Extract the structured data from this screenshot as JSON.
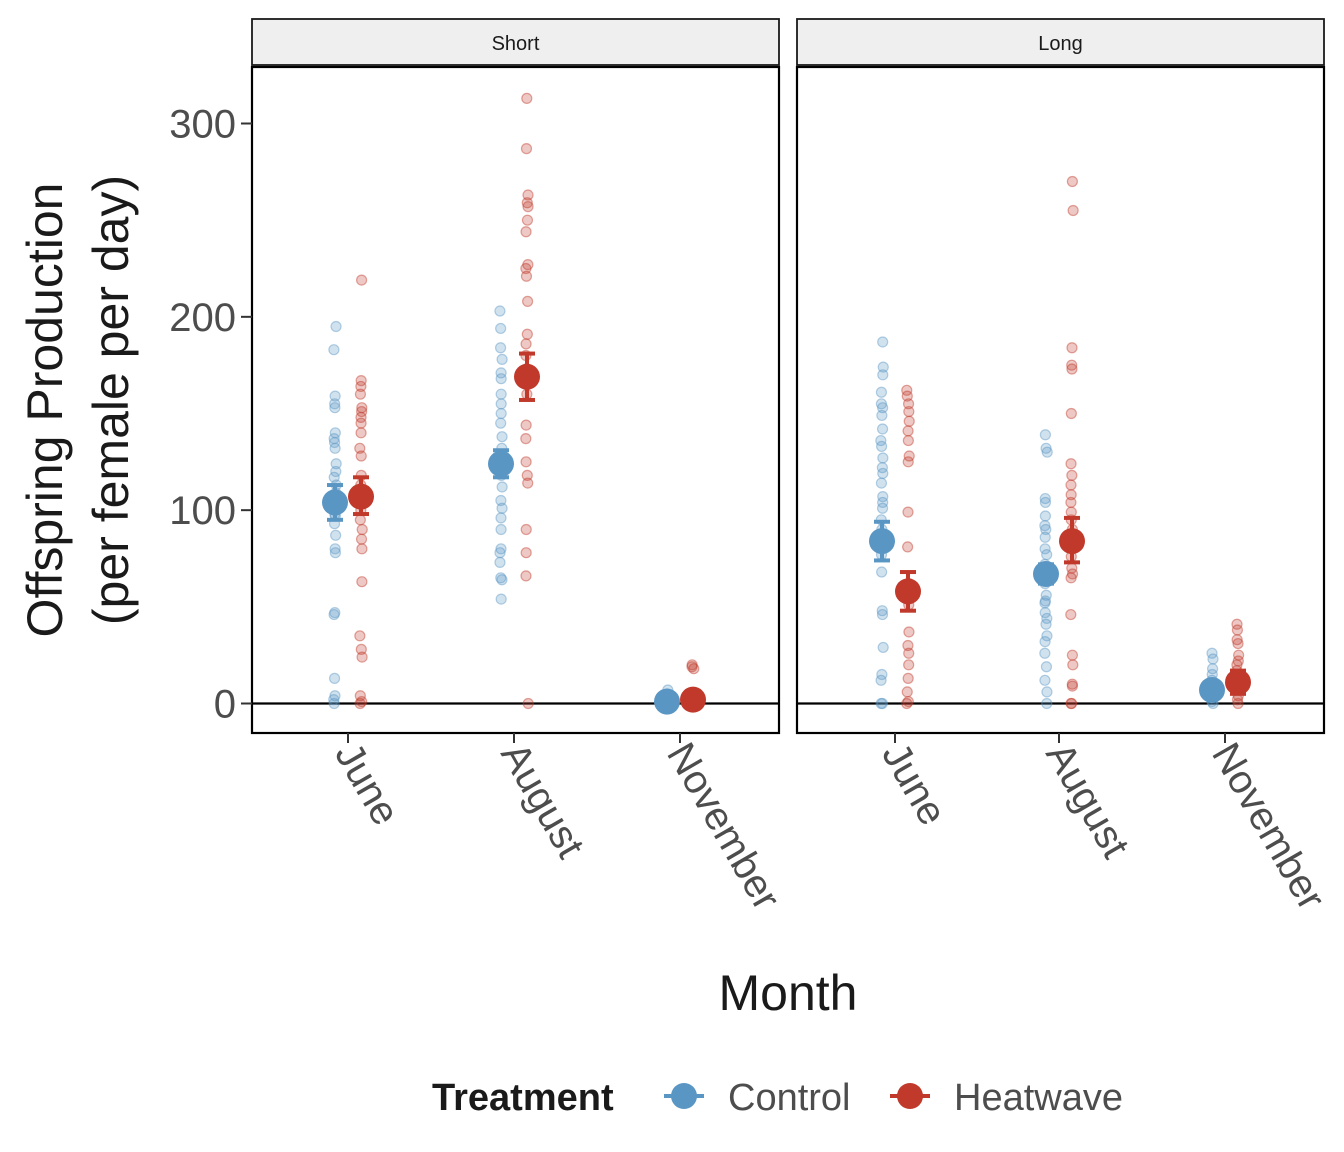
{
  "chart_data": {
    "type": "scatter",
    "xlabel": "Month",
    "ylabel_line1": "Offspring Production",
    "ylabel_line2": "(per female per day)",
    "ylim": [
      -15,
      330
    ],
    "yticks": [
      0,
      100,
      200,
      300
    ],
    "categories": [
      "June",
      "August",
      "November"
    ],
    "legend": {
      "title": "Treatment",
      "position": "bottom",
      "items": [
        {
          "name": "Control",
          "color": "#5a96c4"
        },
        {
          "name": "Heatwave",
          "color": "#c0392b"
        }
      ]
    },
    "panels": [
      {
        "label": "Short",
        "groups": [
          {
            "month": "June",
            "treatment": "Control",
            "mean": 104,
            "se_low": 95,
            "se_high": 113,
            "points": [
              195,
              183,
              159,
              155,
              153,
              140,
              137,
              135,
              132,
              124,
              120,
              117,
              113,
              109,
              105,
              100,
              98,
              97,
              93,
              87,
              80,
              78,
              47,
              46,
              13,
              4,
              2,
              0
            ]
          },
          {
            "month": "June",
            "treatment": "Heatwave",
            "mean": 107,
            "se_low": 98,
            "se_high": 117,
            "points": [
              219,
              167,
              164,
              160,
              153,
              151,
              148,
              145,
              140,
              132,
              128,
              118,
              113,
              107,
              104,
              100,
              95,
              90,
              85,
              80,
              63,
              35,
              28,
              24,
              4,
              1,
              0
            ]
          },
          {
            "month": "August",
            "treatment": "Control",
            "mean": 124,
            "se_low": 117,
            "se_high": 131,
            "points": [
              203,
              194,
              184,
              178,
              171,
              168,
              160,
              155,
              150,
              145,
              138,
              132,
              128,
              122,
              118,
              112,
              105,
              101,
              96,
              90,
              80,
              78,
              73,
              65,
              64,
              54
            ]
          },
          {
            "month": "August",
            "treatment": "Heatwave",
            "mean": 169,
            "se_low": 157,
            "se_high": 181,
            "points": [
              313,
              287,
              263,
              259,
              257,
              250,
              244,
              227,
              225,
              221,
              208,
              191,
              186,
              180,
              173,
              165,
              160,
              144,
              137,
              125,
              118,
              114,
              90,
              78,
              66,
              0
            ]
          },
          {
            "month": "November",
            "treatment": "Control",
            "mean": 1,
            "se_low": 0,
            "se_high": 2,
            "points": [
              7,
              5,
              4,
              3,
              2,
              1,
              1,
              0,
              0,
              0,
              0,
              0
            ]
          },
          {
            "month": "November",
            "treatment": "Heatwave",
            "mean": 2,
            "se_low": 0,
            "se_high": 4,
            "points": [
              20,
              19,
              18,
              5,
              3,
              2,
              1,
              0,
              0,
              0,
              0
            ]
          }
        ]
      },
      {
        "label": "Long",
        "groups": [
          {
            "month": "June",
            "treatment": "Control",
            "mean": 84,
            "se_low": 74,
            "se_high": 94,
            "points": [
              187,
              174,
              170,
              161,
              155,
              153,
              149,
              142,
              136,
              133,
              127,
              122,
              119,
              114,
              107,
              104,
              101,
              95,
              90,
              86,
              82,
              77,
              68,
              48,
              46,
              29,
              15,
              12,
              0,
              0
            ]
          },
          {
            "month": "June",
            "treatment": "Heatwave",
            "mean": 58,
            "se_low": 48,
            "se_high": 68,
            "points": [
              162,
              159,
              155,
              151,
              146,
              141,
              136,
              128,
              125,
              99,
              81,
              62,
              57,
              51,
              37,
              30,
              26,
              20,
              13,
              6,
              1,
              0
            ]
          },
          {
            "month": "August",
            "treatment": "Control",
            "mean": 67,
            "se_low": 62,
            "se_high": 72,
            "points": [
              139,
              132,
              130,
              106,
              104,
              97,
              92,
              90,
              86,
              80,
              77,
              72,
              66,
              62,
              56,
              53,
              52,
              47,
              44,
              41,
              35,
              32,
              26,
              19,
              12,
              6,
              0
            ]
          },
          {
            "month": "August",
            "treatment": "Heatwave",
            "mean": 84,
            "se_low": 73,
            "se_high": 96,
            "points": [
              270,
              255,
              184,
              175,
              173,
              150,
              124,
              118,
              113,
              108,
              104,
              99,
              95,
              90,
              85,
              76,
              70,
              67,
              65,
              46,
              25,
              20,
              10,
              9,
              0,
              0
            ]
          },
          {
            "month": "November",
            "treatment": "Control",
            "mean": 7,
            "se_low": 3,
            "se_high": 11,
            "points": [
              26,
              23,
              18,
              15,
              12,
              9,
              6,
              5,
              3,
              1,
              0
            ]
          },
          {
            "month": "November",
            "treatment": "Heatwave",
            "mean": 11,
            "se_low": 5,
            "se_high": 17,
            "points": [
              41,
              38,
              33,
              31,
              25,
              22,
              20,
              17,
              13,
              10,
              7,
              4,
              2,
              0
            ]
          }
        ]
      }
    ]
  }
}
